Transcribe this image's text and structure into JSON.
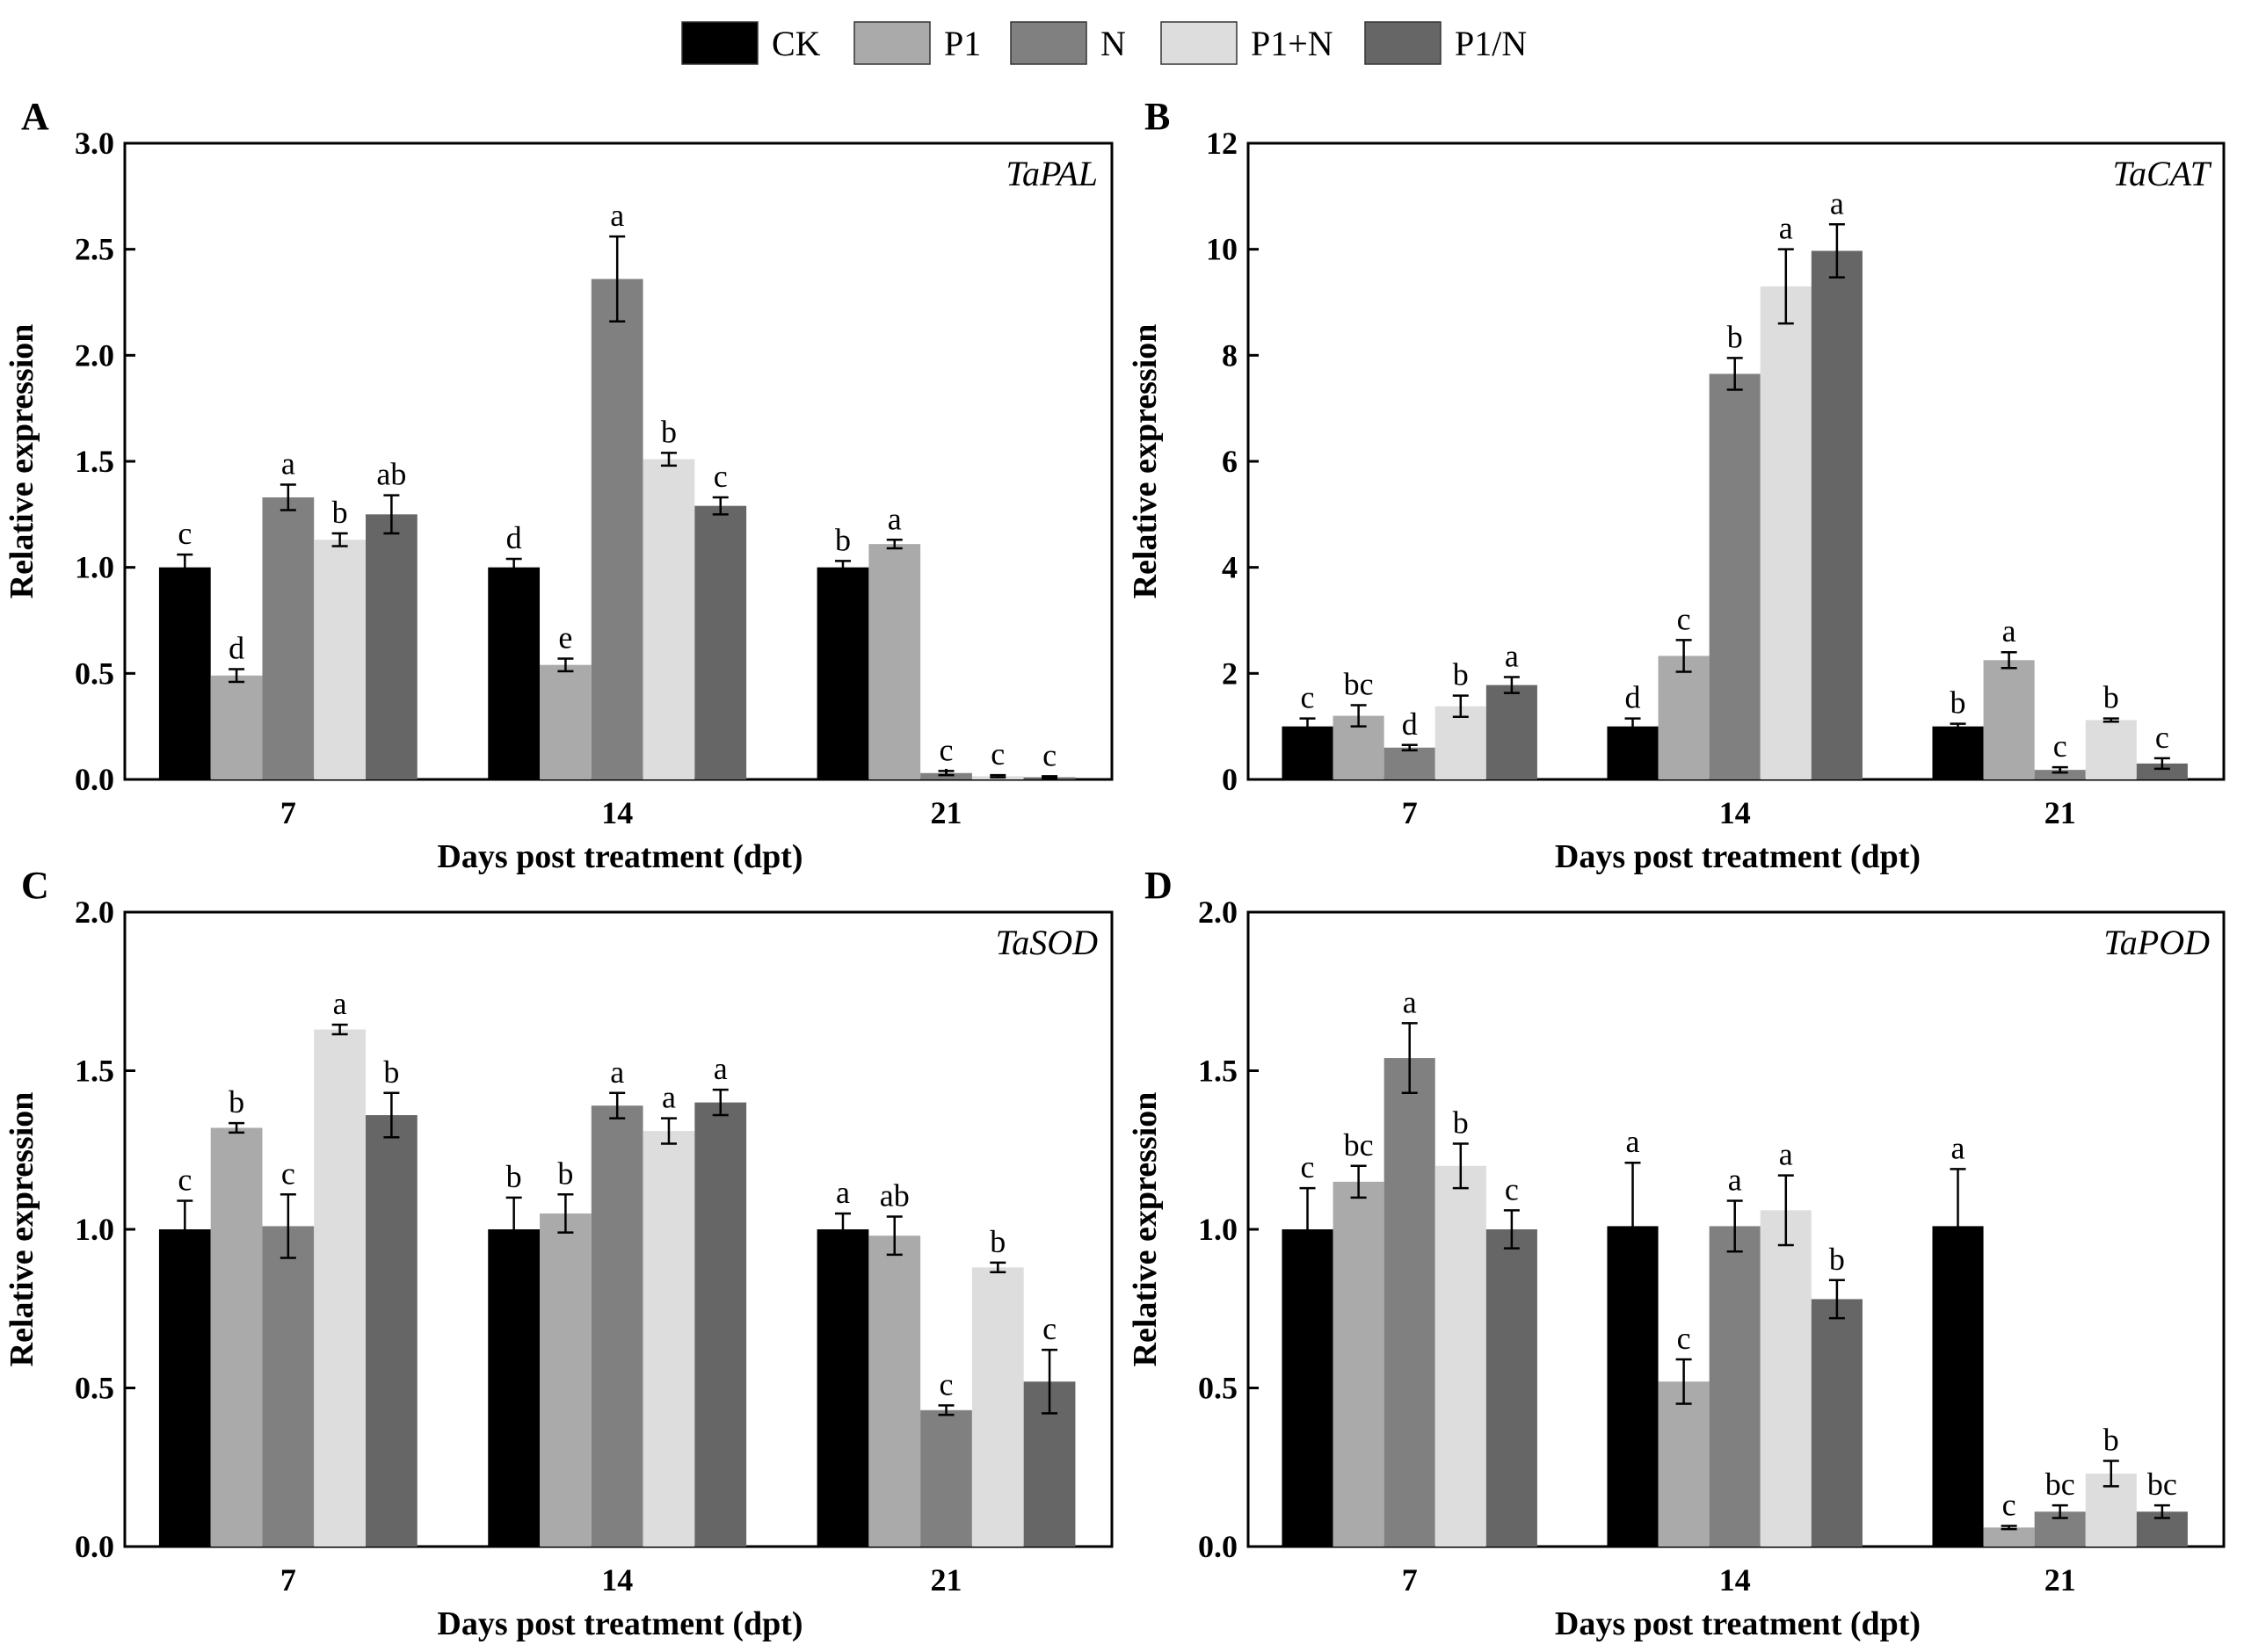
{
  "legend": {
    "placement": "top-center",
    "entries": [
      {
        "name": "CK",
        "color": "#000000"
      },
      {
        "name": "P1",
        "color": "#aaaaaa"
      },
      {
        "name": "N",
        "color": "#808080"
      },
      {
        "name": "P1+N",
        "color": "#dddddd"
      },
      {
        "name": "P1/N",
        "color": "#666666"
      }
    ]
  },
  "chart_data": [
    {
      "type": "bar",
      "panel": "A",
      "gene": "TaPAL",
      "xlabel": "Days post treatment (dpt)",
      "ylabel": "Relative expression",
      "ylim": [
        0,
        3.0
      ],
      "yticks": [
        "0.0",
        "0.5",
        "1.0",
        "1.5",
        "2.0",
        "2.5",
        "3.0"
      ],
      "categories": [
        "7",
        "14",
        "21"
      ],
      "series": [
        {
          "name": "CK",
          "values": [
            1.0,
            1.0,
            1.0
          ],
          "errors": [
            0.06,
            0.04,
            0.03
          ],
          "letters": [
            "c",
            "d",
            "b"
          ]
        },
        {
          "name": "P1",
          "values": [
            0.49,
            0.54,
            1.11
          ],
          "errors": [
            0.03,
            0.03,
            0.02
          ],
          "letters": [
            "d",
            "e",
            "a"
          ]
        },
        {
          "name": "N",
          "values": [
            1.33,
            2.36,
            0.03
          ],
          "errors": [
            0.06,
            0.2,
            0.01
          ],
          "letters": [
            "a",
            "a",
            "c"
          ]
        },
        {
          "name": "P1+N",
          "values": [
            1.13,
            1.51,
            0.015
          ],
          "errors": [
            0.03,
            0.03,
            0.005
          ],
          "letters": [
            "b",
            "b",
            "c"
          ]
        },
        {
          "name": "P1/N",
          "values": [
            1.25,
            1.29,
            0.01
          ],
          "errors": [
            0.09,
            0.04,
            0.005
          ],
          "letters": [
            "ab",
            "c",
            "c"
          ]
        }
      ]
    },
    {
      "type": "bar",
      "panel": "B",
      "gene": "TaCAT",
      "xlabel": "Days post treatment (dpt)",
      "ylabel": "Relative expression",
      "ylim": [
        0,
        12
      ],
      "yticks": [
        "0",
        "2",
        "4",
        "6",
        "8",
        "10",
        "12"
      ],
      "categories": [
        "7",
        "14",
        "21"
      ],
      "series": [
        {
          "name": "CK",
          "values": [
            1.0,
            1.0,
            1.0
          ],
          "errors": [
            0.15,
            0.15,
            0.05
          ],
          "letters": [
            "c",
            "d",
            "b"
          ]
        },
        {
          "name": "P1",
          "values": [
            1.2,
            2.33,
            2.25
          ],
          "errors": [
            0.2,
            0.3,
            0.15
          ],
          "letters": [
            "bc",
            "c",
            "a"
          ]
        },
        {
          "name": "N",
          "values": [
            0.6,
            7.65,
            0.18
          ],
          "errors": [
            0.05,
            0.3,
            0.05
          ],
          "letters": [
            "d",
            "b",
            "c"
          ]
        },
        {
          "name": "P1+N",
          "values": [
            1.38,
            9.3,
            1.12
          ],
          "errors": [
            0.2,
            0.7,
            0.03
          ],
          "letters": [
            "b",
            "a",
            "b"
          ]
        },
        {
          "name": "P1/N",
          "values": [
            1.78,
            9.97,
            0.3
          ],
          "errors": [
            0.15,
            0.5,
            0.1
          ],
          "letters": [
            "a",
            "a",
            "c"
          ]
        }
      ]
    },
    {
      "type": "bar",
      "panel": "C",
      "gene": "TaSOD",
      "xlabel": "Days post treatment (dpt)",
      "ylabel": "Relative expression",
      "ylim": [
        0,
        2.0
      ],
      "yticks": [
        "0.0",
        "0.5",
        "1.0",
        "1.5",
        "2.0"
      ],
      "categories": [
        "7",
        "14",
        "21"
      ],
      "series": [
        {
          "name": "CK",
          "values": [
            1.0,
            1.0,
            1.0
          ],
          "errors": [
            0.09,
            0.1,
            0.05
          ],
          "letters": [
            "c",
            "b",
            "a"
          ]
        },
        {
          "name": "P1",
          "values": [
            1.32,
            1.05,
            0.98
          ],
          "errors": [
            0.015,
            0.06,
            0.06
          ],
          "letters": [
            "b",
            "b",
            "ab"
          ]
        },
        {
          "name": "N",
          "values": [
            1.01,
            1.39,
            0.43
          ],
          "errors": [
            0.1,
            0.04,
            0.015
          ],
          "letters": [
            "c",
            "a",
            "c"
          ]
        },
        {
          "name": "P1+N",
          "values": [
            1.63,
            1.31,
            0.88
          ],
          "errors": [
            0.015,
            0.04,
            0.015
          ],
          "letters": [
            "a",
            "a",
            "b"
          ]
        },
        {
          "name": "P1/N",
          "values": [
            1.36,
            1.4,
            0.52
          ],
          "errors": [
            0.07,
            0.04,
            0.1
          ],
          "letters": [
            "b",
            "a",
            "c"
          ]
        }
      ]
    },
    {
      "type": "bar",
      "panel": "D",
      "gene": "TaPOD",
      "xlabel": "Days post treatment (dpt)",
      "ylabel": "Relative expression",
      "ylim": [
        0,
        2.0
      ],
      "yticks": [
        "0.0",
        "0.5",
        "1.0",
        "1.5",
        "2.0"
      ],
      "categories": [
        "7",
        "14",
        "21"
      ],
      "series": [
        {
          "name": "CK",
          "values": [
            1.0,
            1.01,
            1.01
          ],
          "errors": [
            0.13,
            0.2,
            0.18
          ],
          "letters": [
            "c",
            "a",
            "a"
          ]
        },
        {
          "name": "P1",
          "values": [
            1.15,
            0.52,
            0.06
          ],
          "errors": [
            0.05,
            0.07,
            0.005
          ],
          "letters": [
            "bc",
            "c",
            "c"
          ]
        },
        {
          "name": "N",
          "values": [
            1.54,
            1.01,
            0.11
          ],
          "errors": [
            0.11,
            0.08,
            0.02
          ],
          "letters": [
            "a",
            "a",
            "bc"
          ]
        },
        {
          "name": "P1+N",
          "values": [
            1.2,
            1.06,
            0.23
          ],
          "errors": [
            0.07,
            0.11,
            0.04
          ],
          "letters": [
            "b",
            "a",
            "b"
          ]
        },
        {
          "name": "P1/N",
          "values": [
            1.0,
            0.78,
            0.11
          ],
          "errors": [
            0.06,
            0.06,
            0.02
          ],
          "letters": [
            "c",
            "b",
            "bc"
          ]
        }
      ]
    }
  ]
}
